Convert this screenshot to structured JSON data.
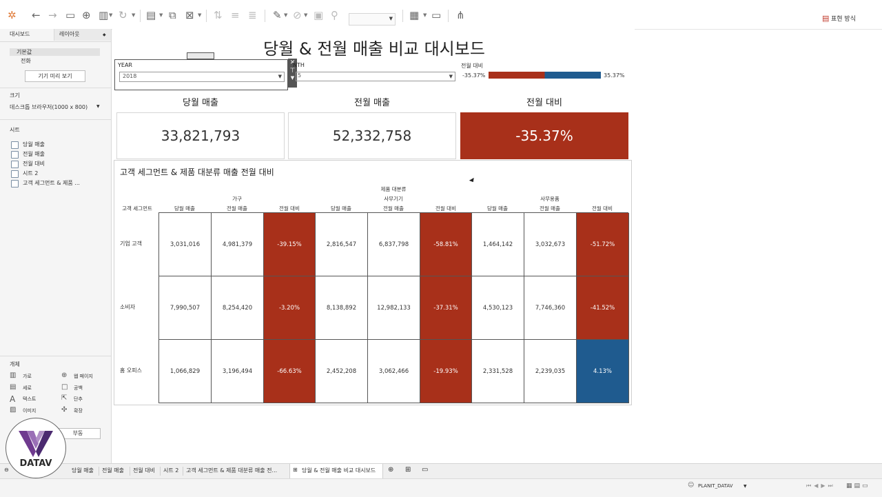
{
  "dashboard": {
    "title": "당월 & 전월 매출 비교 대시보드",
    "year_filter": {
      "label": "YEAR",
      "value": "2018"
    },
    "month_filter": {
      "label": "NTH",
      "value": "5"
    },
    "diff_legend": {
      "title": "전월 대비",
      "min": "-35.37%",
      "max": "35.37%"
    },
    "kpis": [
      {
        "title": "당월 매출",
        "value": "33,821,793"
      },
      {
        "title": "전월 매출",
        "value": "52,332,758"
      },
      {
        "title": "전월 대비",
        "value": "-35.37%"
      }
    ],
    "crosstab": {
      "title": "고객 세그먼트 & 제품 대분류 매출 전월 대비",
      "dimension_label": "제품 대분류",
      "row_header": "고객 세그먼트",
      "categories": [
        "가구",
        "사무기기",
        "사무용품"
      ],
      "measures": [
        "당월 매출",
        "전월 매출",
        "전월 대비"
      ],
      "rows": [
        {
          "segment": "기업 고객",
          "values": [
            "3,031,016",
            "4,981,379",
            "-39.15%",
            "2,816,547",
            "6,837,798",
            "-58.81%",
            "1,464,142",
            "3,032,673",
            "-51.72%"
          ]
        },
        {
          "segment": "소비자",
          "values": [
            "7,990,507",
            "8,254,420",
            "-3.20%",
            "8,138,892",
            "12,982,133",
            "-37.31%",
            "4,530,123",
            "7,746,360",
            "-41.52%"
          ]
        },
        {
          "segment": "홈 오피스",
          "values": [
            "1,066,829",
            "3,196,494",
            "-66.63%",
            "2,452,208",
            "3,062,466",
            "-19.93%",
            "2,331,528",
            "2,239,035",
            "4.13%"
          ]
        }
      ]
    }
  },
  "sidebar": {
    "tabs": [
      "대시보드",
      "레이아웃"
    ],
    "devices": [
      "기본값",
      "전화"
    ],
    "device_preview_button": "기기 미리 보기",
    "size_header": "크기",
    "size_value": "데스크톱 브라우저(1000 x 800)",
    "sheets_header": "시트",
    "sheets": [
      "당월 매출",
      "전월 매출",
      "전월 대비",
      "시트 2",
      "고객 세그먼트 & 제품 ..."
    ],
    "objects_header": "개체",
    "objects": [
      {
        "label": "가로",
        "icon": "horizontal-icon"
      },
      {
        "label": "웹 페이지",
        "icon": "globe-icon"
      },
      {
        "label": "세로",
        "icon": "vertical-icon"
      },
      {
        "label": "공백",
        "icon": "blank-icon"
      },
      {
        "label": "텍스트",
        "icon": "text-icon"
      },
      {
        "label": "단추",
        "icon": "button-icon"
      },
      {
        "label": "이미지",
        "icon": "image-icon"
      },
      {
        "label": "확장",
        "icon": "extension-icon"
      }
    ],
    "floating_button": "부동"
  },
  "toolbar": {
    "show_me": "표현 방식"
  },
  "bottom_tabs": {
    "tabs": [
      "당월 매출",
      "전월 매출",
      "전월 대비",
      "시트 2",
      "고객 세그먼트 & 제품 대분류 매출 전..."
    ],
    "active_tab": "당월 & 전월 매출 비교 대시보드"
  },
  "status": {
    "user": "PLANIT_DATAV"
  },
  "logo": {
    "text": "DATAV"
  },
  "colors": {
    "negative": "#a8301a",
    "positive": "#1f5b8f"
  }
}
